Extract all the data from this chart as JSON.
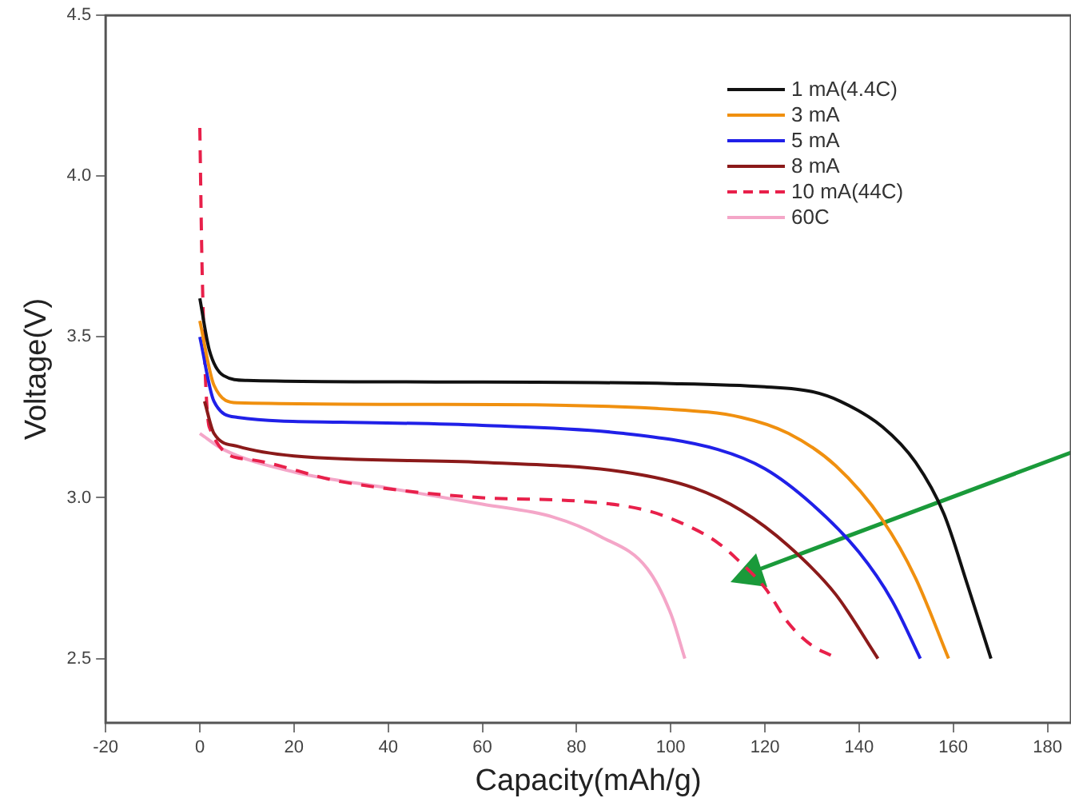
{
  "chart_data": {
    "type": "line",
    "xlabel": "Capacity(mAh/g)",
    "ylabel": "Voltage(V)",
    "xlim": [
      -20,
      185
    ],
    "ylim": [
      2.3,
      4.5
    ],
    "xticks": [
      -20,
      0,
      20,
      40,
      60,
      80,
      100,
      120,
      140,
      160,
      180
    ],
    "yticks": [
      {
        "value": 2.5,
        "label": "2.5"
      },
      {
        "value": 3,
        "label": "3.0"
      },
      {
        "value": 3.5,
        "label": "3.5"
      },
      {
        "value": 4,
        "label": "4.0"
      },
      {
        "value": 4.5,
        "label": "4.5"
      }
    ],
    "grid": false,
    "legend": "top right",
    "marker": "none",
    "series": [
      {
        "name": "1 mA(4.4C)",
        "color": "#111111",
        "x": [
          0,
          2,
          5,
          10,
          50,
          100,
          120,
          130,
          136,
          145,
          152,
          158,
          163,
          168
        ],
        "values": [
          3.62,
          3.46,
          3.38,
          3.365,
          3.36,
          3.355,
          3.345,
          3.33,
          3.3,
          3.22,
          3.11,
          2.95,
          2.73,
          2.5
        ]
      },
      {
        "name": "3 mA",
        "color": "#f0900f",
        "x": [
          0,
          3,
          8,
          50,
          100,
          115,
          125,
          135,
          145,
          152,
          159
        ],
        "values": [
          3.55,
          3.35,
          3.295,
          3.29,
          3.275,
          3.25,
          3.2,
          3.1,
          2.93,
          2.75,
          2.5
        ]
      },
      {
        "name": "5 mA",
        "color": "#2020e8",
        "x": [
          0,
          3,
          8,
          30,
          60,
          90,
          110,
          120,
          130,
          140,
          147,
          153
        ],
        "values": [
          3.5,
          3.3,
          3.25,
          3.235,
          3.225,
          3.2,
          3.15,
          3.09,
          2.98,
          2.83,
          2.68,
          2.5
        ]
      },
      {
        "name": "8 mA",
        "color": "#8b1a1a",
        "x": [
          1,
          3,
          8,
          20,
          60,
          90,
          105,
          115,
          125,
          135,
          144
        ],
        "values": [
          3.3,
          3.2,
          3.16,
          3.13,
          3.11,
          3.08,
          3.03,
          2.96,
          2.85,
          2.7,
          2.5
        ]
      },
      {
        "name": "10 mA(44C)",
        "color": "#e8204a",
        "line_style": "dashed",
        "x": [
          0,
          0.5,
          2,
          10,
          30,
          60,
          80,
          95,
          104,
          110,
          114,
          120,
          125,
          130,
          134
        ],
        "values": [
          4.15,
          3.7,
          3.22,
          3.12,
          3.05,
          3.0,
          2.99,
          2.96,
          2.91,
          2.86,
          2.81,
          2.72,
          2.61,
          2.54,
          2.51
        ]
      },
      {
        "name": "60C",
        "color": "#f4a6c8",
        "x": [
          0,
          5,
          20,
          40,
          60,
          75,
          85,
          95,
          100,
          103
        ],
        "values": [
          3.2,
          3.15,
          3.08,
          3.03,
          2.98,
          2.94,
          2.88,
          2.78,
          2.64,
          2.5
        ]
      }
    ]
  }
}
